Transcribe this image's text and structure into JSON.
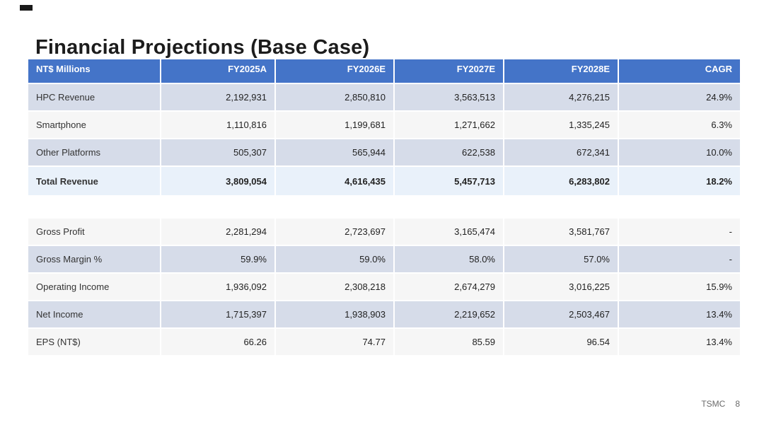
{
  "slide": {
    "title": "Financial Projections (Base Case)",
    "footer": {
      "brand": "TSMC",
      "page": "8"
    }
  },
  "colors": {
    "header_bg": "#4474C8",
    "header_text": "#FFFFFF",
    "row_alt_bg": "#D6DCE9",
    "row_plain_bg": "#F6F6F6",
    "row_total_bg": "#E9F1FA",
    "label_text": "#333333",
    "num_text": "#222222",
    "title_text": "#1C1C1C",
    "footer_text": "#6A6A6A"
  },
  "table": {
    "headers": [
      "NT$ Millions",
      "FY2025A",
      "FY2026E",
      "FY2027E",
      "FY2028E",
      "CAGR"
    ],
    "revenue_rows": [
      {
        "label": "HPC Revenue",
        "values": [
          "2,192,931",
          "2,850,810",
          "3,563,513",
          "4,276,215",
          "24.9%"
        ]
      },
      {
        "label": "Smartphone",
        "values": [
          "1,110,816",
          "1,199,681",
          "1,271,662",
          "1,335,245",
          "6.3%"
        ]
      },
      {
        "label": "Other Platforms",
        "values": [
          "505,307",
          "565,944",
          "622,538",
          "672,341",
          "10.0%"
        ]
      },
      {
        "label": "Total Revenue",
        "values": [
          "3,809,054",
          "4,616,435",
          "5,457,713",
          "6,283,802",
          "18.2%"
        ]
      }
    ],
    "profit_rows": [
      {
        "label": "Gross Profit",
        "values": [
          "2,281,294",
          "2,723,697",
          "3,165,474",
          "3,581,767",
          "-"
        ]
      },
      {
        "label": "Gross Margin %",
        "values": [
          "59.9%",
          "59.0%",
          "58.0%",
          "57.0%",
          "-"
        ]
      },
      {
        "label": "Operating Income",
        "values": [
          "1,936,092",
          "2,308,218",
          "2,674,279",
          "3,016,225",
          "15.9%"
        ]
      },
      {
        "label": "Net Income",
        "values": [
          "1,715,397",
          "1,938,903",
          "2,219,652",
          "2,503,467",
          "13.4%"
        ]
      },
      {
        "label": "EPS (NT$)",
        "values": [
          "66.26",
          "74.77",
          "85.59",
          "96.54",
          "13.4%"
        ]
      }
    ]
  }
}
